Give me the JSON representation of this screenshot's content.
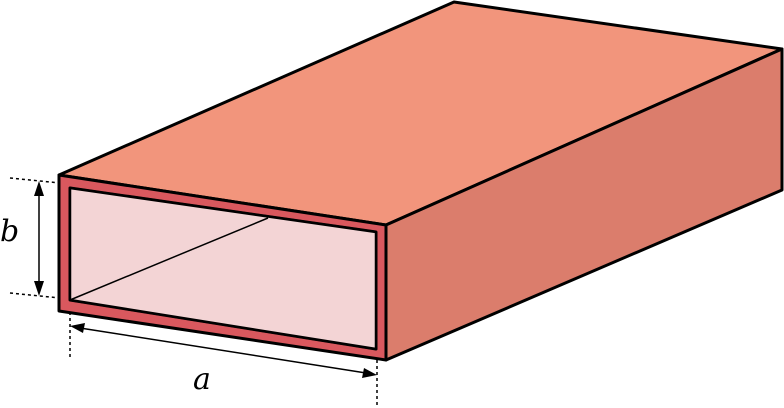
{
  "diagram": {
    "labels": {
      "width": "a",
      "height": "b"
    },
    "colors": {
      "top_face": "#f2957c",
      "side_face": "#db7d6c",
      "front_rim": "#d9585e",
      "interior": "#f3d4d5",
      "outline": "#000000"
    }
  }
}
